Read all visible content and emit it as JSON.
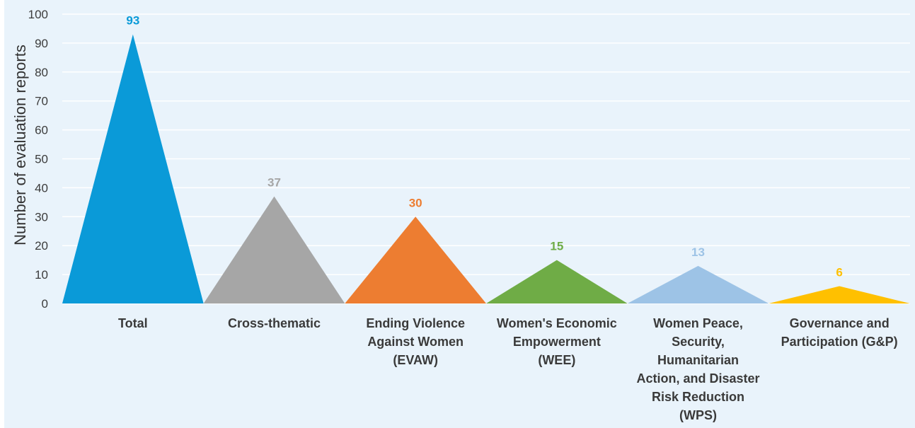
{
  "chart_data": {
    "type": "bar",
    "categories": [
      "Total",
      "Cross-thematic",
      "Ending Violence Against Women (EVAW)",
      "Women's Economic Empowerment (WEE)",
      "Women Peace, Security, Humanitarian Action, and Disaster Risk Reduction (WPS)",
      "Governance and Participation (G&P)"
    ],
    "category_lines": [
      [
        "Total"
      ],
      [
        "Cross-thematic"
      ],
      [
        "Ending Violence",
        "Against Women",
        "(EVAW)"
      ],
      [
        "Women's Economic",
        "Empowerment",
        "(WEE)"
      ],
      [
        "Women Peace,",
        "Security,",
        "Humanitarian",
        "Action, and Disaster",
        "Risk Reduction",
        "(WPS)"
      ],
      [
        "Governance and",
        "Participation (G&P)"
      ]
    ],
    "values": [
      93,
      37,
      30,
      15,
      13,
      6
    ],
    "data_labels": [
      "93",
      "37",
      "30",
      "15",
      "13",
      "6"
    ],
    "colors": [
      "#0a9ad8",
      "#a6a6a6",
      "#ed7d31",
      "#6fac46",
      "#9dc3e6",
      "#ffc000"
    ],
    "title": "",
    "xlabel": "",
    "ylabel": "Number of evaluation reports",
    "ylim": [
      0,
      100
    ],
    "yticks": [
      "0",
      "10",
      "20",
      "30",
      "40",
      "50",
      "60",
      "70",
      "80",
      "90",
      "100"
    ],
    "grid": true,
    "legend": "none",
    "background_color": "#e9f3fb"
  }
}
